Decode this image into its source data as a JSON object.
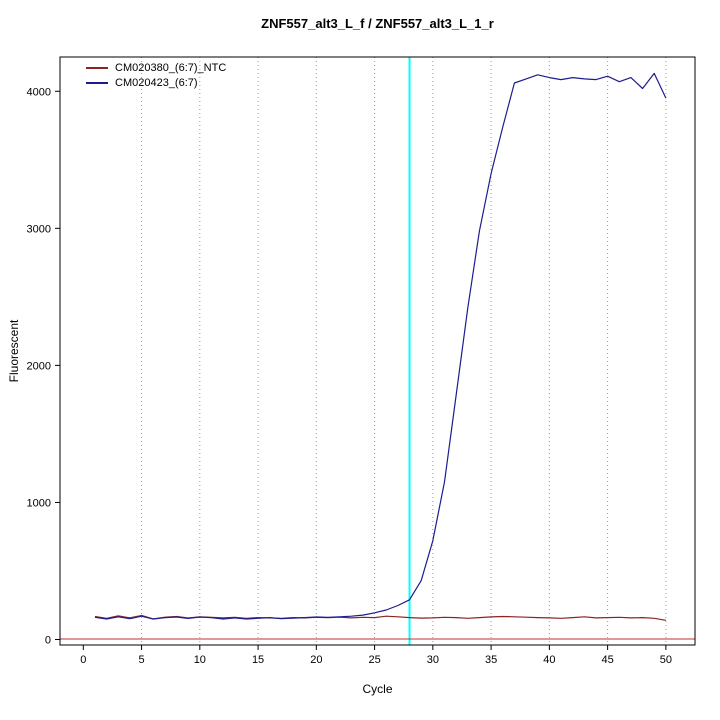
{
  "title": "ZNF557_alt3_L_f / ZNF557_alt3_L_1_r",
  "chart_data": {
    "type": "line",
    "title": "ZNF557_alt3_L_f / ZNF557_alt3_L_1_r",
    "xlabel": "Cycle",
    "ylabel": "Fluorescent",
    "xlim": [
      -2,
      52.5
    ],
    "ylim": [
      -40,
      4250
    ],
    "xticks": [
      0,
      5,
      10,
      15,
      20,
      25,
      30,
      35,
      40,
      45,
      50
    ],
    "yticks": [
      0,
      1000,
      2000,
      3000,
      4000
    ],
    "grid_x": [
      5,
      10,
      15,
      20,
      25,
      30,
      35,
      40,
      45,
      50
    ],
    "grid_color": "#9a9a9a",
    "legend_position": "top-left",
    "threshold_cycle_vline": {
      "x": 28,
      "color": "#00FFFF"
    },
    "baseline_hline": {
      "y": 4,
      "color": "#C03030"
    },
    "x": [
      1,
      2,
      3,
      4,
      5,
      6,
      7,
      8,
      9,
      10,
      11,
      12,
      13,
      14,
      15,
      16,
      17,
      18,
      19,
      20,
      21,
      22,
      23,
      24,
      25,
      26,
      27,
      28,
      29,
      30,
      31,
      32,
      33,
      34,
      35,
      36,
      37,
      38,
      39,
      40,
      41,
      42,
      43,
      44,
      45,
      46,
      47,
      48,
      49,
      50
    ],
    "series": [
      {
        "name": "CM020380_(6:7)_NTC",
        "color": "#8B2323",
        "values": [
          168,
          155,
          172,
          158,
          175,
          150,
          163,
          168,
          157,
          165,
          162,
          158,
          162,
          155,
          160,
          158,
          155,
          160,
          158,
          162,
          160,
          163,
          158,
          162,
          160,
          170,
          166,
          160,
          156,
          158,
          162,
          160,
          155,
          160,
          165,
          168,
          166,
          163,
          160,
          158,
          155,
          160,
          166,
          158,
          160,
          162,
          158,
          160,
          155,
          140
        ]
      },
      {
        "name": "CM020423_(6:7)",
        "color": "#1C1C8F",
        "values": [
          162,
          150,
          166,
          152,
          170,
          150,
          160,
          164,
          154,
          164,
          160,
          150,
          158,
          150,
          155,
          160,
          152,
          156,
          160,
          164,
          162,
          166,
          170,
          178,
          195,
          215,
          248,
          290,
          430,
          720,
          1150,
          1780,
          2420,
          2980,
          3400,
          3740,
          4060,
          4090,
          4120,
          4100,
          4085,
          4100,
          4090,
          4085,
          4110,
          4070,
          4100,
          4020,
          4130,
          3950
        ]
      }
    ]
  }
}
